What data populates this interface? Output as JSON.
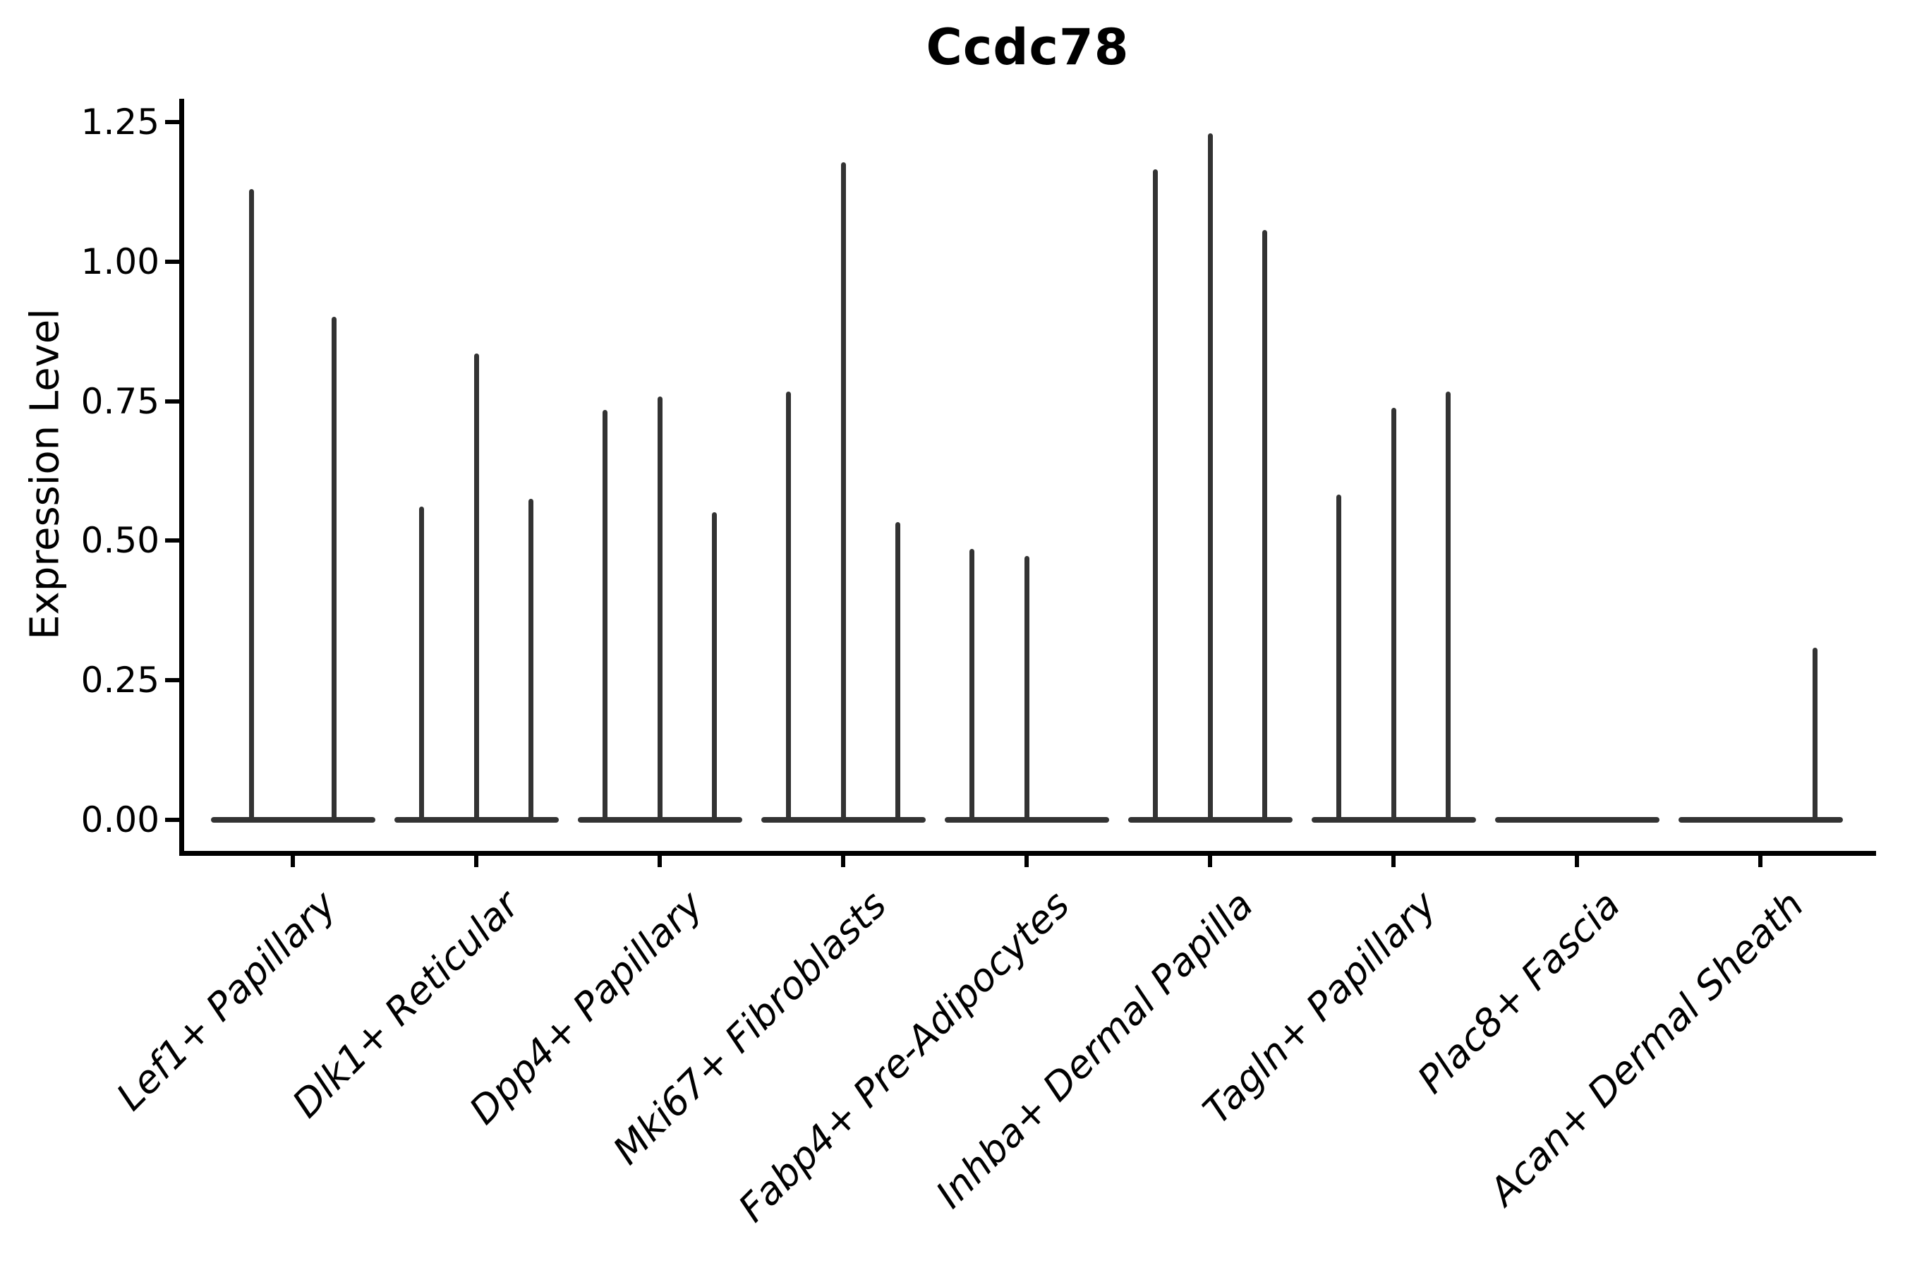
{
  "title": "Ccdc78",
  "y_axis": {
    "label": "Expression Level",
    "tick_labels": [
      "0.00",
      "0.25",
      "0.50",
      "0.75",
      "1.00",
      "1.25"
    ],
    "tick_values": [
      0,
      0.25,
      0.5,
      0.75,
      1.0,
      1.25
    ]
  },
  "colors": {
    "violin": "#333333",
    "axis": "#000000",
    "text": "#000000",
    "background": "#ffffff"
  },
  "chart_data": {
    "type": "violin",
    "title": "Ccdc78",
    "xlabel": "",
    "ylabel": "Expression Level",
    "ylim": [
      0,
      1.25
    ],
    "grid": false,
    "legend": "none",
    "categories": [
      "Lef1+ Papillary",
      "Dlk1+ Reticular",
      "Dpp4+ Papillary",
      "Mki67+ Fibroblasts",
      "Fabp4+ Pre-Adipocytes",
      "Inhba+ Dermal Papilla",
      "Tagln+ Papillary",
      "Plac8+ Fascia",
      "Acan+ Dermal Sheath"
    ],
    "series": [
      {
        "category": "Lef1+ Papillary",
        "violin_peaks": [
          1.13,
          0.901
        ]
      },
      {
        "category": "Dlk1+ Reticular",
        "violin_peaks": [
          0.561,
          0.835,
          0.575
        ]
      },
      {
        "category": "Dpp4+ Papillary",
        "violin_peaks": [
          0.734,
          0.758,
          0.551
        ]
      },
      {
        "category": "Mki67+ Fibroblasts",
        "violin_peaks": [
          0.767,
          1.178,
          0.533
        ]
      },
      {
        "category": "Fabp4+ Pre-Adipocytes",
        "violin_peaks": [
          0.485,
          0.473,
          0
        ]
      },
      {
        "category": "Inhba+ Dermal Papilla",
        "violin_peaks": [
          1.165,
          1.23,
          1.057
        ]
      },
      {
        "category": "Tagln+ Papillary",
        "violin_peaks": [
          0.583,
          0.738,
          0.767
        ]
      },
      {
        "category": "Plac8+ Fascia",
        "violin_peaks": [
          0,
          0,
          0
        ]
      },
      {
        "category": "Acan+ Dermal Sheath",
        "violin_peaks": [
          0,
          0,
          0.308
        ]
      }
    ]
  }
}
